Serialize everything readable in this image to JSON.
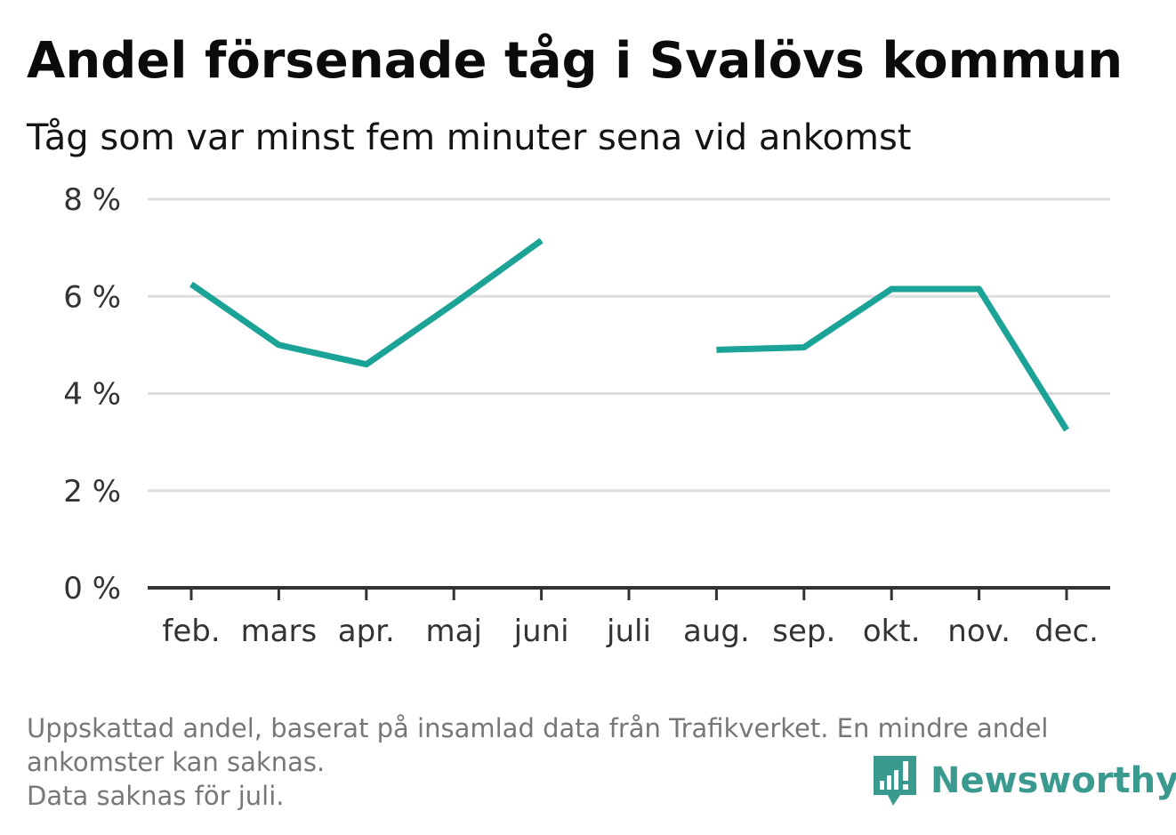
{
  "title": "Andel försenade tåg i Svalövs kommun",
  "subtitle": "Tåg som var minst fem minuter sena vid ankomst",
  "chart_data": {
    "type": "line",
    "categories": [
      "feb.",
      "mars",
      "apr.",
      "maj",
      "juni",
      "juli",
      "aug.",
      "sep.",
      "okt.",
      "nov.",
      "dec."
    ],
    "series": [
      {
        "values": [
          6.25,
          5.0,
          4.6,
          5.85,
          7.15,
          null,
          4.9,
          4.95,
          6.15,
          6.15,
          3.25
        ]
      }
    ],
    "yticks": [
      "0 %",
      "2 %",
      "4 %",
      "6 %",
      "8 %"
    ],
    "ylim": [
      0,
      8
    ],
    "grid": true,
    "line_color": "#1aa396",
    "gridline_color": "#dddddd",
    "axis_color": "#333333"
  },
  "footnote": {
    "line1": "Uppskattad andel, baserat på insamlad data från Trafikverket. En mindre andel",
    "line2": "ankomster kan saknas.",
    "line3": "Data saknas för juli."
  },
  "logo": {
    "text": "Newsworthy",
    "icon": "bar-chart-speech-bubble-icon",
    "color": "#3a9a8f"
  }
}
